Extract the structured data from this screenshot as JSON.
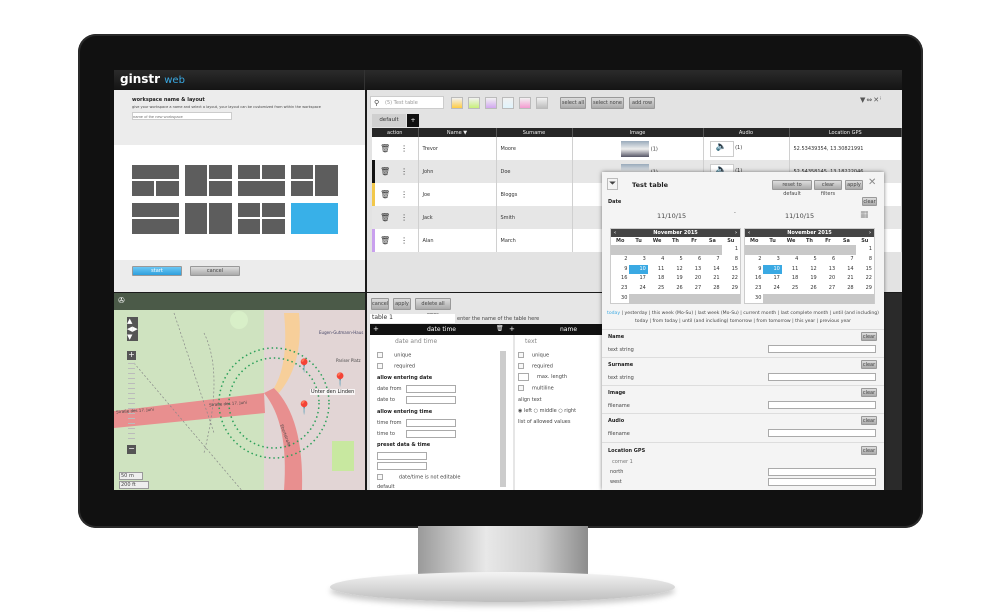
{
  "brand": {
    "logo": "ginstr",
    "logo_suffix": "web",
    "accent": "#3aa9e3"
  },
  "workspace": {
    "heading": "workspace name & layout",
    "description": "give your workspace a name and select a layout, your layout can be customized from within the workspace",
    "name_placeholder": "name of the new workspace",
    "selected_layout": 7,
    "start_label": "start",
    "cancel_label": "cancel"
  },
  "table_panel": {
    "search_placeholder": "(5) Test table",
    "color_filters": [
      "#ffcc44",
      "#c8f07a",
      "#d2a8f0",
      "#dff3fb",
      "#f49ad0",
      "#bdbdbd"
    ],
    "select_all": "select all",
    "select_none": "select none",
    "add_row": "add row",
    "tab": "default",
    "add_tab": "+",
    "columns": [
      "action",
      "Name ▼",
      "Surname",
      "Image",
      "Audio",
      "Location GPS"
    ],
    "rows": [
      {
        "name": "Trevor",
        "surname": "Moore",
        "image_count": "(1)",
        "audio_count": "(1)",
        "gps": "52.53439354, 13.30821991",
        "marker": ""
      },
      {
        "name": "John",
        "surname": "Doe",
        "image_count": "(1)",
        "audio_count": "(1)",
        "gps": "52.54358145, 13.18222046",
        "marker": "#111111"
      },
      {
        "name": "Joe",
        "surname": "Bloggs",
        "image_count": "",
        "audio_count": "",
        "gps": "",
        "marker": "#f2c84b"
      },
      {
        "name": "Jack",
        "surname": "Smith",
        "image_count": "",
        "audio_count": "",
        "gps": "",
        "marker": ""
      },
      {
        "name": "Alan",
        "surname": "March",
        "image_count": "",
        "audio_count": "",
        "gps": "",
        "marker": "#c9a0ee"
      }
    ]
  },
  "map": {
    "scale_m": "50 m",
    "scale_ft": "200 ft",
    "labels": [
      "Straße des 17. Juni",
      "Ebertstraße",
      "Pariser Platz",
      "Unter den Linden",
      "Eugen-Gutmann-Haus"
    ]
  },
  "config": {
    "cancel": "cancel",
    "apply": "apply",
    "delete_all": "delete all rows",
    "table_name": "table 1",
    "table_name_hint": "enter the name of the table here",
    "col1": {
      "header": "date time",
      "type": "date and time",
      "unique": "unique",
      "required": "required",
      "allow_date": "allow entering date",
      "date_from": "date from",
      "date_to": "date to",
      "allow_time": "allow entering time",
      "time_from": "time from",
      "time_to": "time to",
      "preset": "preset data & time",
      "not_editable": "date/time is not editable",
      "default": "default"
    },
    "col2": {
      "header": "name",
      "type": "text",
      "unique": "unique",
      "required": "required",
      "max_length": "max. length",
      "multiline": "multiline",
      "align": "align text",
      "left": "left",
      "middle": "middle",
      "right": "right",
      "allowed": "list of allowed values"
    }
  },
  "filter": {
    "title": "Test table",
    "reset": "reset to default",
    "clear_filters": "clear filters",
    "apply": "apply",
    "date_label": "Date",
    "clear": "clear",
    "date_from": "11/10/15",
    "date_to": "11/10/15",
    "separator": "-",
    "calendar": {
      "month": "November 2015",
      "weekdays": [
        "Mo",
        "Tu",
        "We",
        "Th",
        "Fr",
        "Sa",
        "Su"
      ],
      "first_weekday_offset": 6,
      "days": 30,
      "selected": 10
    },
    "quick_first": "today",
    "quick_rest": " | yesterday | this week (Mo-Su) | last week (Mo-Su) | current month | last complete month | until (and including) today | from today | until (and including) tomorrow | from tomorrow | this year | previous year",
    "fields": [
      {
        "label": "Name",
        "hint": "text string"
      },
      {
        "label": "Surname",
        "hint": "text string"
      },
      {
        "label": "Image",
        "hint": "filename"
      },
      {
        "label": "Audio",
        "hint": "filename"
      }
    ],
    "gps": {
      "label": "Location GPS",
      "corner": "corner 1",
      "north": "north",
      "west": "west"
    }
  }
}
